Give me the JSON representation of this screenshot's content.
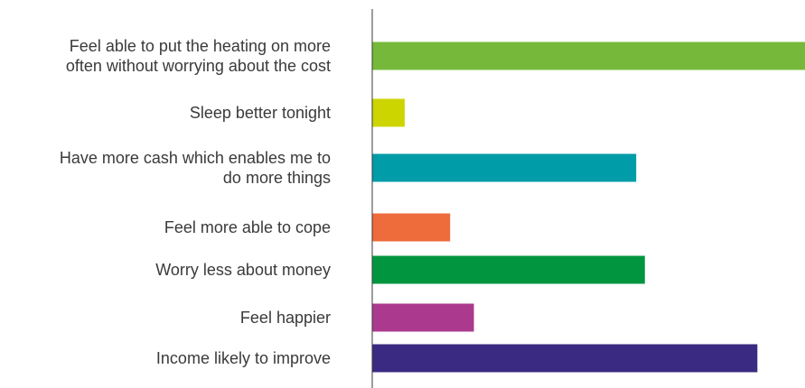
{
  "chart_data": {
    "type": "bar",
    "orientation": "horizontal",
    "title": "",
    "xlabel": "",
    "ylabel": "",
    "categories": [
      [
        "Feel able to put the heating on more",
        "often without worrying about the cost"
      ],
      [
        "Sleep better tonight"
      ],
      [
        "Have more cash which enables me to",
        "do more things"
      ],
      [
        "Feel more able to cope"
      ],
      [
        "Worry less about money"
      ],
      [
        "Feel happier"
      ],
      [
        "Income likely to improve"
      ]
    ],
    "values": [
      100,
      7.5,
      61,
      18,
      63,
      23.5,
      89
    ],
    "xlim": [
      0,
      100
    ],
    "colors": [
      "#76b83a",
      "#cdd500",
      "#009ca8",
      "#ee6b3b",
      "#00953e",
      "#ab3a8e",
      "#3b2a82"
    ],
    "axis_color": "#3a3a3a",
    "grid": false,
    "legend": "none"
  }
}
